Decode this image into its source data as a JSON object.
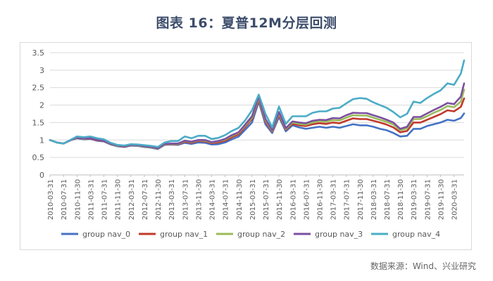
{
  "title": "图表 16：夏普12M分层回测",
  "source": "数据来源：Wind、兴业研究",
  "chart_data": {
    "type": "line",
    "ylim": [
      0,
      3.5
    ],
    "yticks": [
      0,
      0.5,
      1,
      1.5,
      2,
      2.5,
      3,
      3.5
    ],
    "ytick_labels": [
      "0",
      "0.5",
      "1",
      "1.5",
      "2",
      "2.5",
      "3",
      "3.5"
    ],
    "xtick_labels": [
      "2010-03-31",
      "2010-07-31",
      "2010-11-30",
      "2011-03-31",
      "2011-07-31",
      "2011-11-30",
      "2012-03-31",
      "2012-07-31",
      "2012-11-30",
      "2013-03-31",
      "2013-07-31",
      "2013-11-30",
      "2014-03-31",
      "2014-07-31",
      "2014-11-30",
      "2015-03-31",
      "2015-07-31",
      "2015-11-30",
      "2016-03-31",
      "2016-07-31",
      "2016-11-30",
      "2017-03-31",
      "2017-07-31",
      "2017-11-30",
      "2018-03-31",
      "2018-07-31",
      "2018-11-30",
      "2019-03-31",
      "2019-07-31",
      "2019-11-30",
      "2020-03-31"
    ],
    "legend_position": "bottom",
    "grid": "horizontal",
    "colors": [
      "#4472c4",
      "#c0392b",
      "#9bbb59",
      "#7b4fa0",
      "#4bacc6"
    ],
    "x": [
      "2010-03-31",
      "2010-05-31",
      "2010-07-31",
      "2010-09-30",
      "2010-11-30",
      "2011-01-31",
      "2011-03-31",
      "2011-05-31",
      "2011-07-31",
      "2011-09-30",
      "2011-11-30",
      "2012-01-31",
      "2012-03-31",
      "2012-05-31",
      "2012-07-31",
      "2012-09-30",
      "2012-11-30",
      "2013-01-31",
      "2013-03-31",
      "2013-05-31",
      "2013-07-31",
      "2013-09-30",
      "2013-11-30",
      "2014-01-31",
      "2014-03-31",
      "2014-05-31",
      "2014-07-31",
      "2014-09-30",
      "2014-11-30",
      "2015-01-31",
      "2015-03-31",
      "2015-05-31",
      "2015-07-31",
      "2015-09-30",
      "2015-11-30",
      "2016-01-31",
      "2016-03-31",
      "2016-05-31",
      "2016-07-31",
      "2016-09-30",
      "2016-11-30",
      "2017-01-31",
      "2017-03-31",
      "2017-05-31",
      "2017-07-31",
      "2017-09-30",
      "2017-11-30",
      "2018-01-31",
      "2018-03-31",
      "2018-05-31",
      "2018-07-31",
      "2018-09-30",
      "2018-11-30",
      "2019-01-31",
      "2019-03-31",
      "2019-05-31",
      "2019-07-31",
      "2019-09-30",
      "2019-11-30",
      "2020-01-31",
      "2020-03-31",
      "2020-05-31",
      "2020-06-30"
    ],
    "series": [
      {
        "name": "group nav_0",
        "values": [
          1,
          0.93,
          0.9,
          0.99,
          1.05,
          1.02,
          1.03,
          0.98,
          0.96,
          0.87,
          0.82,
          0.8,
          0.84,
          0.83,
          0.8,
          0.78,
          0.74,
          0.86,
          0.87,
          0.86,
          0.92,
          0.89,
          0.93,
          0.92,
          0.87,
          0.88,
          0.93,
          1.02,
          1.1,
          1.3,
          1.5,
          2.1,
          1.45,
          1.2,
          1.66,
          1.25,
          1.42,
          1.36,
          1.32,
          1.35,
          1.38,
          1.35,
          1.38,
          1.35,
          1.4,
          1.45,
          1.42,
          1.42,
          1.38,
          1.32,
          1.28,
          1.2,
          1.1,
          1.12,
          1.32,
          1.32,
          1.4,
          1.45,
          1.5,
          1.58,
          1.55,
          1.63,
          1.76
        ]
      },
      {
        "name": "group nav_1",
        "values": [
          1,
          0.93,
          0.9,
          0.99,
          1.06,
          1.03,
          1.04,
          0.99,
          0.97,
          0.88,
          0.83,
          0.81,
          0.85,
          0.84,
          0.81,
          0.79,
          0.75,
          0.87,
          0.88,
          0.88,
          0.95,
          0.92,
          0.97,
          0.96,
          0.91,
          0.93,
          0.98,
          1.08,
          1.16,
          1.38,
          1.6,
          2.16,
          1.52,
          1.24,
          1.72,
          1.3,
          1.46,
          1.42,
          1.4,
          1.45,
          1.48,
          1.46,
          1.5,
          1.48,
          1.55,
          1.62,
          1.6,
          1.6,
          1.55,
          1.5,
          1.44,
          1.36,
          1.22,
          1.26,
          1.5,
          1.5,
          1.58,
          1.66,
          1.74,
          1.85,
          1.82,
          1.95,
          2.19
        ]
      },
      {
        "name": "group nav_2",
        "values": [
          1,
          0.93,
          0.9,
          0.99,
          1.07,
          1.03,
          1.05,
          1.0,
          0.98,
          0.88,
          0.83,
          0.82,
          0.86,
          0.84,
          0.81,
          0.79,
          0.75,
          0.88,
          0.89,
          0.89,
          0.97,
          0.94,
          0.99,
          0.98,
          0.93,
          0.96,
          1.01,
          1.12,
          1.2,
          1.42,
          1.64,
          2.2,
          1.56,
          1.26,
          1.76,
          1.32,
          1.5,
          1.46,
          1.44,
          1.5,
          1.54,
          1.52,
          1.57,
          1.56,
          1.64,
          1.71,
          1.7,
          1.7,
          1.64,
          1.58,
          1.52,
          1.44,
          1.28,
          1.33,
          1.6,
          1.6,
          1.68,
          1.78,
          1.86,
          1.97,
          1.94,
          2.1,
          2.44
        ]
      },
      {
        "name": "group nav_3",
        "values": [
          1,
          0.93,
          0.9,
          0.99,
          1.07,
          1.04,
          1.05,
          1.0,
          0.98,
          0.89,
          0.84,
          0.82,
          0.86,
          0.85,
          0.82,
          0.8,
          0.76,
          0.89,
          0.9,
          0.9,
          0.98,
          0.95,
          1.0,
          1.0,
          0.94,
          0.97,
          1.03,
          1.14,
          1.22,
          1.45,
          1.68,
          2.24,
          1.6,
          1.28,
          1.8,
          1.34,
          1.53,
          1.5,
          1.48,
          1.55,
          1.58,
          1.57,
          1.63,
          1.62,
          1.71,
          1.78,
          1.77,
          1.77,
          1.71,
          1.65,
          1.58,
          1.5,
          1.32,
          1.38,
          1.66,
          1.66,
          1.76,
          1.86,
          1.95,
          2.06,
          2.03,
          2.24,
          2.62
        ]
      },
      {
        "name": "group nav_4",
        "values": [
          1,
          0.93,
          0.9,
          1.0,
          1.1,
          1.08,
          1.1,
          1.05,
          1.02,
          0.92,
          0.86,
          0.84,
          0.88,
          0.87,
          0.85,
          0.83,
          0.8,
          0.93,
          0.97,
          0.97,
          1.1,
          1.05,
          1.12,
          1.12,
          1.03,
          1.06,
          1.14,
          1.26,
          1.35,
          1.57,
          1.85,
          2.3,
          1.75,
          1.36,
          1.96,
          1.46,
          1.68,
          1.68,
          1.68,
          1.78,
          1.82,
          1.82,
          1.9,
          1.92,
          2.05,
          2.17,
          2.2,
          2.18,
          2.08,
          2.0,
          1.92,
          1.8,
          1.65,
          1.75,
          2.1,
          2.06,
          2.2,
          2.32,
          2.42,
          2.62,
          2.58,
          2.9,
          3.28
        ]
      }
    ]
  }
}
